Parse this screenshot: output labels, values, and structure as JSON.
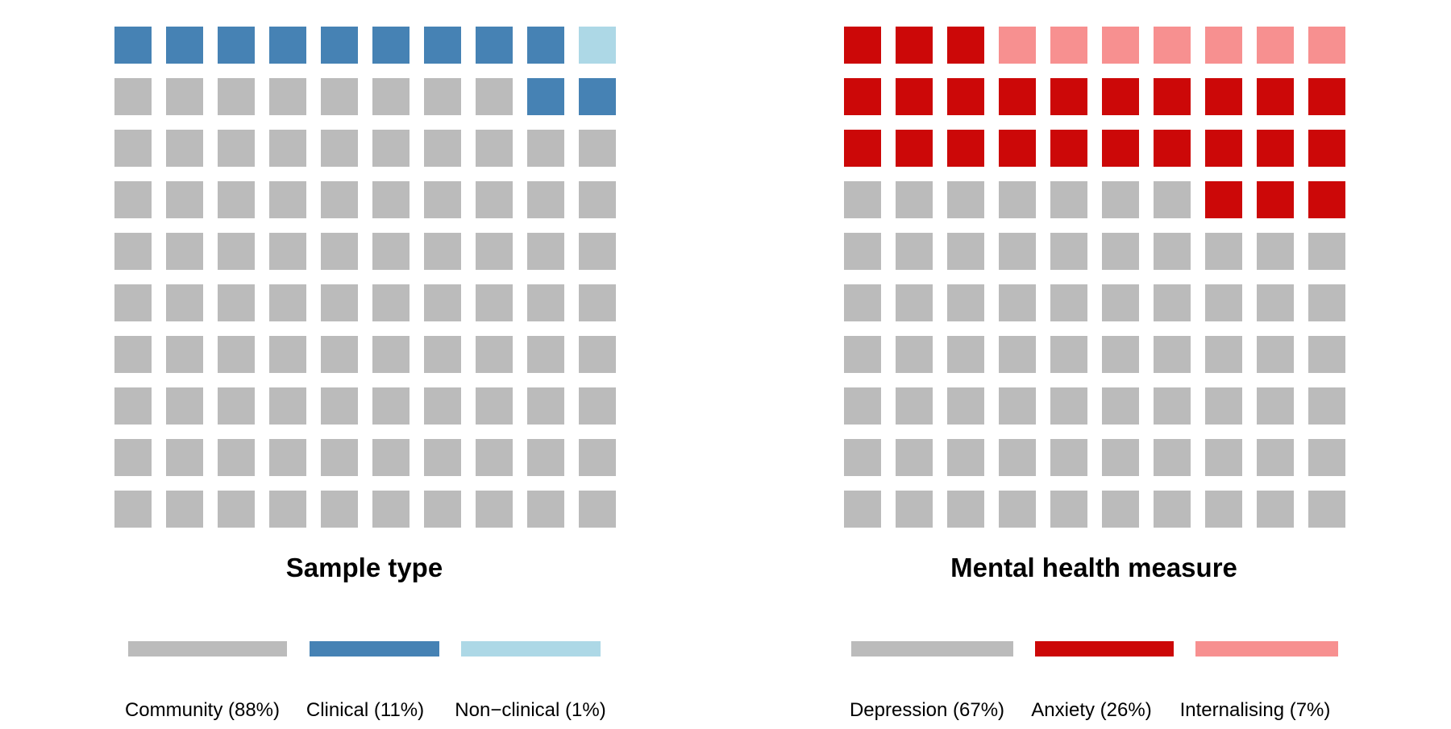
{
  "chart_data": [
    {
      "type": "waffle",
      "title": "Sample type",
      "grid": {
        "rows": 10,
        "cols": 10
      },
      "fill_order": "bottom-left to right, then upward",
      "categories": [
        {
          "name": "Community",
          "label": "Community (88%)",
          "value": 88,
          "color": "#bbbbbb"
        },
        {
          "name": "Clinical",
          "label": "Clinical (11%)",
          "value": 11,
          "color": "#4682b4"
        },
        {
          "name": "Non-clinical",
          "label": "Non−clinical (1%)",
          "value": 1,
          "color": "#add8e6"
        }
      ],
      "legend_position": "bottom"
    },
    {
      "type": "waffle",
      "title": "Mental health measure",
      "grid": {
        "rows": 10,
        "cols": 10
      },
      "fill_order": "bottom-left to right, then upward",
      "categories": [
        {
          "name": "Depression",
          "label": "Depression (67%)",
          "value": 67,
          "color": "#bbbbbb"
        },
        {
          "name": "Anxiety",
          "label": "Anxiety (26%)",
          "value": 26,
          "color": "#cc0808"
        },
        {
          "name": "Internalising",
          "label": "Internalising (7%)",
          "value": 7,
          "color": "#f79090"
        }
      ],
      "legend_position": "bottom"
    }
  ]
}
